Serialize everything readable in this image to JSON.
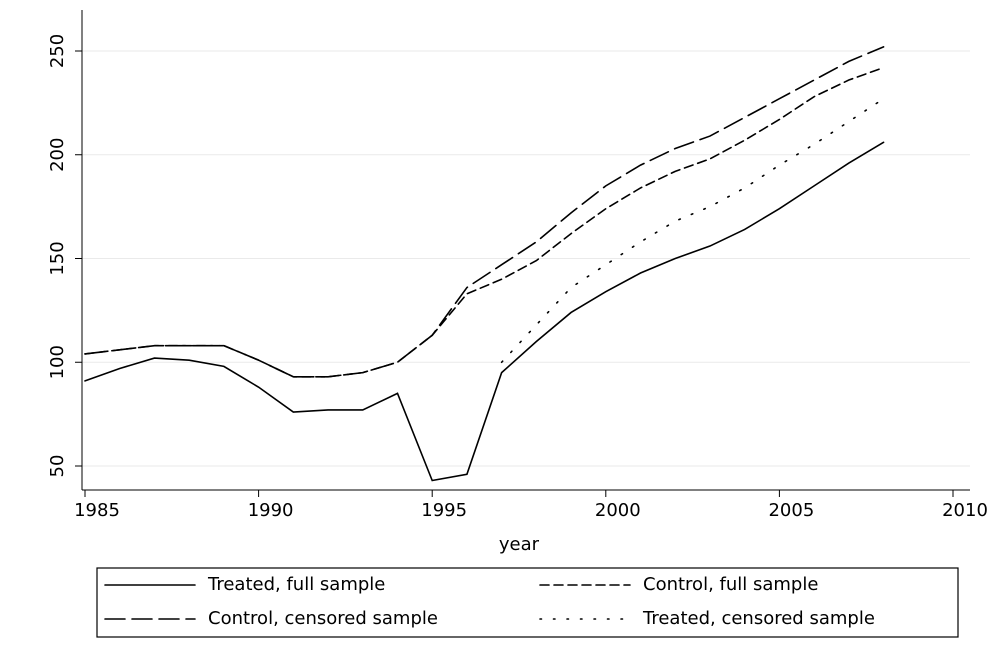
{
  "chart_data": {
    "type": "line",
    "x_label": "year",
    "x": [
      1985,
      1986,
      1987,
      1988,
      1989,
      1990,
      1991,
      1992,
      1993,
      1994,
      1995,
      1996,
      1997,
      1998,
      1999,
      2000,
      2001,
      2002,
      2003,
      2004,
      2005,
      2006,
      2007,
      2008
    ],
    "xlim": [
      1985,
      2010
    ],
    "xticks": [
      1985,
      1990,
      1995,
      2000,
      2005,
      2010
    ],
    "ylim": [
      50,
      250
    ],
    "yticks": [
      50,
      100,
      150,
      200,
      250
    ],
    "grid": true,
    "series": [
      {
        "name": "Treated, full sample",
        "color": "#000000",
        "dash": "none",
        "values": [
          91,
          97,
          102,
          101,
          98,
          88,
          76,
          77,
          77,
          85,
          43,
          46,
          95,
          110,
          124,
          134,
          143,
          150,
          156,
          164,
          174,
          185,
          196,
          206
        ]
      },
      {
        "name": "Control, full sample",
        "color": "#000000",
        "dash": "9 5",
        "values": [
          104,
          106,
          108,
          108,
          108,
          101,
          93,
          93,
          95,
          100,
          113,
          133,
          140,
          149,
          162,
          174,
          184,
          192,
          198,
          207,
          217,
          228,
          236,
          242
        ]
      },
      {
        "name": "Control, censored sample",
        "color": "#000000",
        "dash": "20 7",
        "values": [
          104,
          106,
          108,
          108,
          108,
          101,
          93,
          93,
          95,
          100,
          113,
          136,
          147,
          158,
          172,
          185,
          195,
          203,
          209,
          218,
          227,
          236,
          245,
          252
        ]
      },
      {
        "name": "Treated, censored sample",
        "color": "#000000",
        "dash": "1.5 12",
        "values": [
          null,
          null,
          null,
          null,
          null,
          null,
          null,
          null,
          null,
          null,
          null,
          null,
          100,
          118,
          136,
          147,
          158,
          168,
          175,
          184,
          195,
          205,
          216,
          227
        ]
      }
    ]
  }
}
